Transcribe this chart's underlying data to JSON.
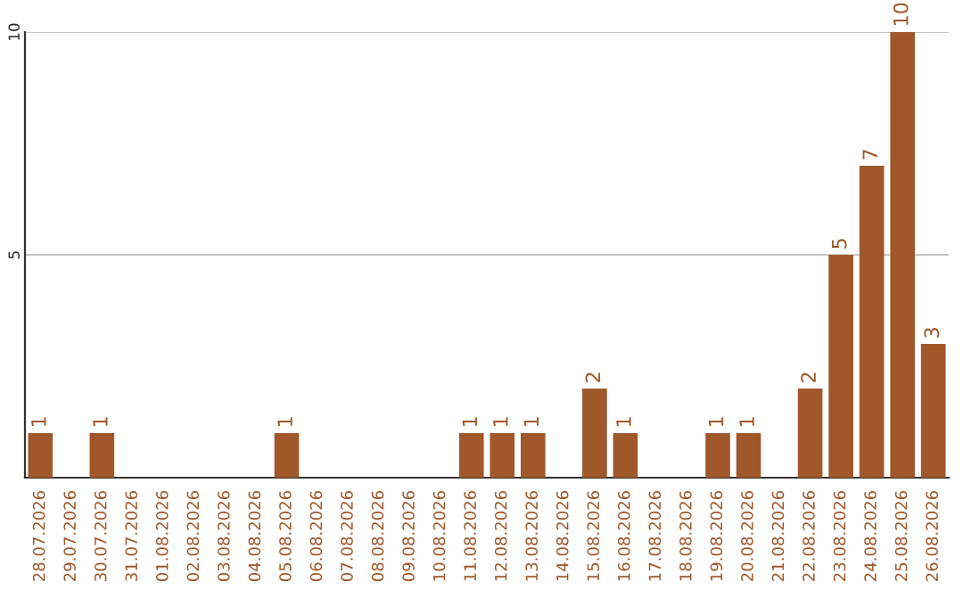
{
  "chart_data": {
    "type": "bar",
    "categories": [
      "28.07.2026",
      "29.07.2026",
      "30.07.2026",
      "31.07.2026",
      "01.08.2026",
      "02.08.2026",
      "03.08.2026",
      "04.08.2026",
      "05.08.2026",
      "06.08.2026",
      "07.08.2026",
      "08.08.2026",
      "09.08.2026",
      "10.08.2026",
      "11.08.2026",
      "12.08.2026",
      "13.08.2026",
      "14.08.2026",
      "15.08.2026",
      "16.08.2026",
      "17.08.2026",
      "18.08.2026",
      "19.08.2026",
      "20.08.2026",
      "21.08.2026",
      "22.08.2026",
      "23.08.2026",
      "24.08.2026",
      "25.08.2026",
      "26.08.2026"
    ],
    "values": [
      1,
      0,
      1,
      0,
      0,
      0,
      0,
      0,
      1,
      0,
      0,
      0,
      0,
      0,
      1,
      1,
      1,
      0,
      2,
      1,
      0,
      0,
      1,
      1,
      0,
      2,
      5,
      7,
      10,
      3
    ],
    "value_labels": [
      "1",
      null,
      "1",
      null,
      null,
      null,
      null,
      null,
      "1",
      null,
      null,
      null,
      null,
      null,
      "1",
      "1",
      "1",
      null,
      "2",
      "1",
      null,
      null,
      "1",
      "1",
      null,
      "2",
      "5",
      "7",
      "10",
      "3"
    ],
    "color": "#a0572a",
    "ylim": [
      0,
      10
    ],
    "yticks": [
      5,
      10
    ],
    "grid": "y",
    "legend": false
  }
}
